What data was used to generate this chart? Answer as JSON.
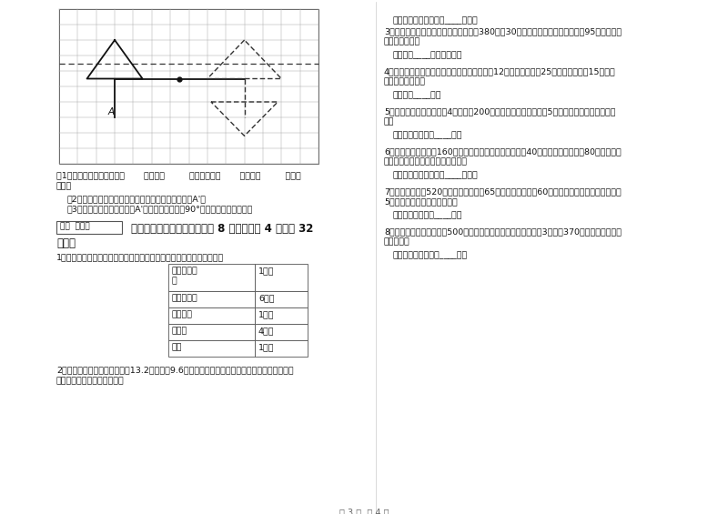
{
  "page_bg": "#ffffff",
  "grid_rows": 10,
  "grid_cols": 14,
  "score_box_text": "得分  评卷人",
  "section6_title": "六、应用知识，解决问题（共 8 小题，每题 4 分，共 32\n分）。",
  "sub_q1": "（1）现在的小伞是经过向（       ）平移（         ）格，再向（       ）平移（         ）格得\n来的。",
  "sub_q2": "（2）沿虚线画出现在小伞的对称图形，伞柄末端标出A'。",
  "sub_q3": "（3）把画出的小伞，围绕点A'按逆时针方向旋转90°，画出旋转后的图形。",
  "q1_text": "1、小明发烧了，要赶快吃药休息。最少需要多长时间才能吃完药休息？",
  "table_data": [
    [
      "找杯子倒开\n水",
      "1分钟"
    ],
    [
      "等开水变温",
      "6分钟"
    ],
    [
      "找感冒药",
      "1分钟"
    ],
    [
      "量体温",
      "4分钟"
    ],
    [
      "吃药",
      "1分钟"
    ]
  ],
  "q2_text": "2、用一根铁丝可以折成一个长13.2厘米，宽9.6厘米的长方形，若把它在折成一个等边三角形，\n这个三角形边长是多少厘米？",
  "right_ans2": "答：这个三角形边长是____厘米。",
  "q3_text": "3、服装厂生产一批服装，如果每天生产380件，30天完成任务，如果每天生产多95件，需要多\n少天完成任务？",
  "right_ans3": "答：需要____天完成任务。",
  "q4_text": "4、王教练给训练馆买乒乓球，所带的钱买每盒12元的乒乓球能买25盒，如果买每盒15元的乒\n乓球能买多少盒？",
  "right_ans4": "答：能买____盒。",
  "q5_text": "5、同学们到苗圃挖树苗，4个小组挖200株，照这样计算，又来了5个小组，一共可挖树苗多少\n株？",
  "right_ans5": "答：一共可挖树苗____株。",
  "q6_text": "6、师徒两人各自加工160个同样的零件，徒弟每小时加工40个，师傅每小时加工80个，加工完\n毕后，师傅比徒弟少用了多长时间？",
  "right_ans6": "答：师傅比徒弟少用了____小时。",
  "q7_text": "7、小乐家到学校520米，小乐每分钟走65米，小红每分钟走60米，从家到学校小红比小乐多走\n5分钟，小红家离学校多少米？",
  "right_ans7": "答：小红家离学校____米。",
  "q8_text": "8、车间第一星期生产零件500个，第二星期生产的比第一星期的3倍还多370个，两个星期共生\n产多少个？",
  "right_ans8": "答：两个星期共生产____个。",
  "page_num": "第 3 页  共 4 页"
}
